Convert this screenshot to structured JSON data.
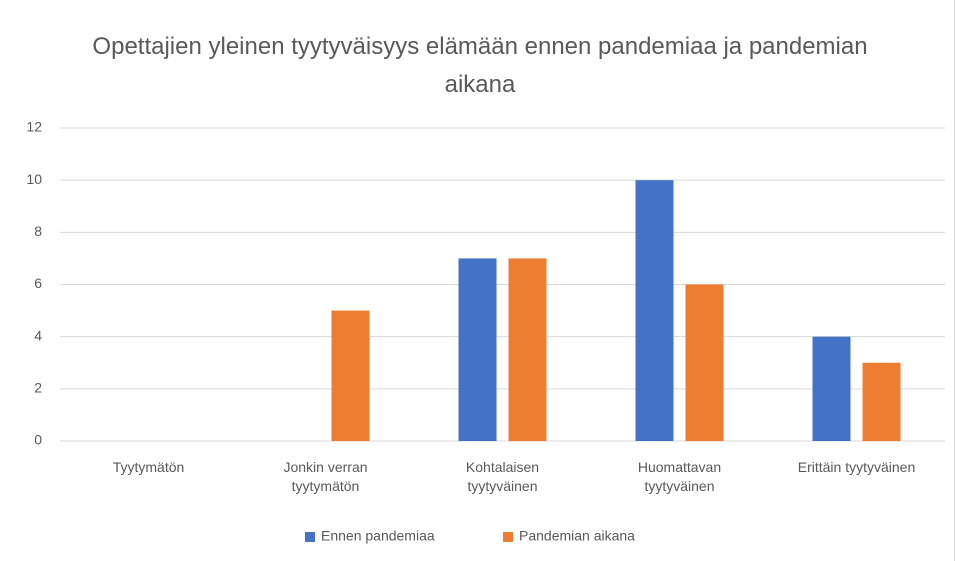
{
  "chart_data": {
    "type": "bar",
    "title": "Opettajien yleinen tyytyväisyys elämään ennen pandemiaa ja pandemian aikana",
    "categories": [
      "Tyytymätön",
      "Jonkin verran tyytymätön",
      "Kohtalaisen tyytyväinen",
      "Huomattavan tyytyväinen",
      "Erittäin tyytyväinen"
    ],
    "series": [
      {
        "name": "Ennen pandemiaa",
        "color": "#4472c4",
        "values": [
          0,
          0,
          7,
          10,
          4
        ]
      },
      {
        "name": "Pandemian aikana",
        "color": "#ed7d31",
        "values": [
          0,
          5,
          7,
          6,
          3
        ]
      }
    ],
    "ylim": [
      0,
      12
    ],
    "yticks": [
      0,
      2,
      4,
      6,
      8,
      10,
      12
    ],
    "grid": true,
    "legend": "bottom"
  }
}
